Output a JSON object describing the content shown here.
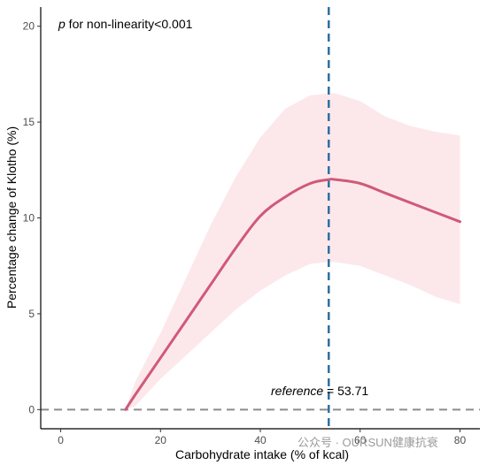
{
  "chart_data": {
    "type": "line",
    "xlabel": "Carbohydrate intake (% of kcal)",
    "ylabel": "Percentage change of Klotho (%)",
    "xlim": [
      -4,
      84
    ],
    "ylim": [
      -1,
      21
    ],
    "x_ticks": [
      0,
      20,
      40,
      60,
      80
    ],
    "y_ticks": [
      0,
      5,
      10,
      15,
      20
    ],
    "annotation_p_symbol": "p",
    "annotation_p_text": " for non-linearity<0.001",
    "reference_label": "reference",
    "reference_value_text": " = 53.71",
    "reference_x": 53.71,
    "baseline_y": 0,
    "line_color": "#d05a78",
    "ci_color": "#fce4e8",
    "reference_line_color": "#2e6fa0",
    "baseline_color": "#8c8c8c",
    "x": [
      13,
      15,
      20,
      25,
      30,
      35,
      40,
      45,
      50,
      53.71,
      55,
      60,
      65,
      70,
      75,
      80
    ],
    "y": [
      0,
      0.8,
      2.7,
      4.6,
      6.5,
      8.4,
      10.1,
      11.1,
      11.8,
      12.0,
      12.0,
      11.8,
      11.3,
      10.8,
      10.3,
      9.8
    ],
    "ci_upper": [
      0,
      1.5,
      4.0,
      6.8,
      9.6,
      12.1,
      14.2,
      15.7,
      16.4,
      16.5,
      16.5,
      16.1,
      15.3,
      14.8,
      14.5,
      14.3
    ],
    "ci_lower": [
      0,
      0.2,
      1.6,
      2.8,
      4.0,
      5.2,
      6.2,
      7.0,
      7.6,
      7.7,
      7.7,
      7.5,
      7.0,
      6.5,
      5.9,
      5.5
    ],
    "watermark": "公众号 · OURSUN健康抗衰"
  }
}
